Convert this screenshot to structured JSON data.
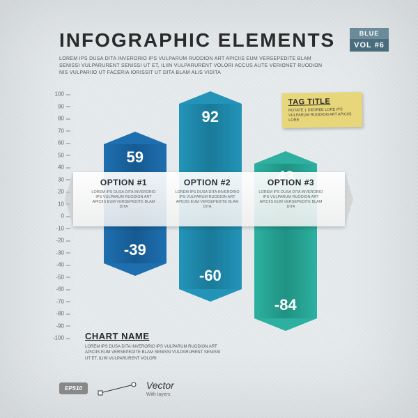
{
  "header": {
    "title": "INFOGRAPHIC ELEMENTS",
    "subtitle": "LOREM IPS DUSA DITA INVERORIO IPS VULPARUM RUODION ART APICIIS EUM VERSEPEDITE BLAM SENISSI VULPARURENT SENISSI UT ET, ILIIN VULPARURENT VOLORI ACCUS AUTE VERIONET RUODION NIS VULPARIIO UT FACERIA IORISSIT UT DITA BLAM ALIS VIDITA"
  },
  "volume": {
    "label": "BLUE",
    "num": "VOL #6"
  },
  "chart": {
    "y_ticks": [
      100,
      90,
      80,
      70,
      60,
      50,
      40,
      30,
      20,
      10,
      0,
      -10,
      -20,
      -30,
      -40,
      -50,
      -60,
      -70,
      -80,
      -90,
      -100
    ],
    "zero_pct": 50,
    "scale": 1.75,
    "bars": [
      {
        "x_pct": 8,
        "top_color": "#1e6fb0",
        "top_color_dark": "#165a91",
        "bot_color": "#1e6fb0",
        "bot_color_dark": "#165a91",
        "top_val": 59,
        "bot_val": -39,
        "label": "OPTION #1",
        "desc": "LOREM IPS DUSA DITA INVERORIO IPS VULPARUM RUODION ART APICIIS EUM VERSEPEDITE BLAM DITA"
      },
      {
        "x_pct": 38,
        "top_color": "#2394b8",
        "top_color_dark": "#1a7a9a",
        "bot_color": "#2394b8",
        "bot_color_dark": "#1a7a9a",
        "top_val": 92,
        "bot_val": -60,
        "label": "OPTION #2",
        "desc": "LOREM IPS DUSA DITA INVERORIO IPS VULPARUM RUODION ART APICIIS EUM VERSEPEDITE BLAM DITA"
      },
      {
        "x_pct": 68,
        "top_color": "#2db0a0",
        "top_color_dark": "#209283",
        "bot_color": "#2db0a0",
        "bot_color_dark": "#209283",
        "top_val": 43,
        "bot_val": -84,
        "label": "OPTION #3",
        "desc": "LOREM IPS DUSA DITA INVERORIO IPS VULPARUM RUODION ART APICIIS EUM VERSEPEDITE BLAM DITA"
      }
    ],
    "band_top_pct": 43
  },
  "tag": {
    "title": "TAG TITLE",
    "text": "ROTATE 1 DEGREE LORE IPS VULPARUM RUODION ART APICIIS LORE"
  },
  "chart_name": {
    "title": "CHART NAME",
    "text": "LOREM IPS DUSA DITA INVERORIO IPS VULPARUM RUODION ART APICIIS EUM VERSEPEDITE BLAM SENISSI VULPARURENT SENISSI UT ET, ILIIN VULPARURENT VOLORI"
  },
  "footer": {
    "eps": "EPS10",
    "vector": "Vector",
    "sub": "With layers"
  }
}
